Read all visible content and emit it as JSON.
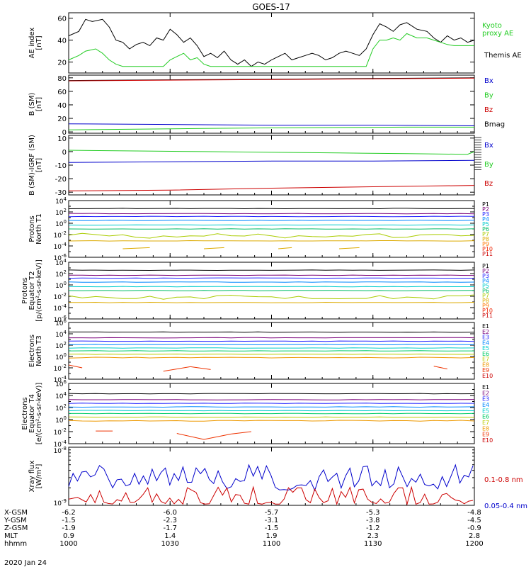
{
  "title": "GOES-17",
  "date_label": "2020 Jan 24",
  "colors": {
    "black": "#000000",
    "green": "#22cc22",
    "red": "#cc0000",
    "blue": "#0000cc"
  },
  "ephemeris": {
    "rows": [
      {
        "label": "X-GSM",
        "values": [
          "-6.2",
          "-6.0",
          "-5.7",
          "-5.3",
          "-4.8"
        ]
      },
      {
        "label": "Y-GSM",
        "values": [
          "-1.5",
          "-2.3",
          "-3.1",
          "-3.8",
          "-4.5"
        ]
      },
      {
        "label": "Z-GSM",
        "values": [
          "-1.9",
          "-1.7",
          "-1.5",
          "-1.2",
          "-0.9"
        ]
      },
      {
        "label": "MLT",
        "values": [
          "0.9",
          "1.4",
          "1.9",
          "2.3",
          "2.8"
        ]
      },
      {
        "label": "hhmm",
        "values": [
          "1000",
          "1030",
          "1100",
          "1130",
          "1200"
        ]
      }
    ]
  },
  "chart_data": [
    {
      "type": "line",
      "ylabel": "AE index\n[nT]",
      "yticks": [
        "20",
        "40",
        "60"
      ],
      "ylim": [
        10,
        65
      ],
      "legend": [
        {
          "label": "Kyoto\nproxy AE",
          "color": "#22cc22"
        },
        {
          "label": "Themis AE",
          "color": "#000000"
        }
      ],
      "series": [
        {
          "name": "Themis AE",
          "color": "#000000",
          "x": [
            0,
            3,
            5,
            7,
            10,
            12,
            14,
            16,
            18,
            20,
            22,
            24,
            26,
            28,
            30,
            32,
            34,
            36,
            38,
            40,
            42,
            44,
            46,
            48,
            50,
            52,
            54,
            56,
            58,
            60,
            62,
            64,
            66,
            68,
            70,
            72,
            74,
            76,
            78,
            80,
            82,
            84,
            86,
            88,
            90,
            92,
            94,
            96,
            98,
            100,
            103,
            106,
            108,
            110,
            112,
            114,
            116,
            118,
            120
          ],
          "y": [
            44,
            48,
            59,
            57,
            59,
            52,
            40,
            38,
            32,
            36,
            38,
            35,
            42,
            40,
            50,
            45,
            38,
            42,
            35,
            25,
            28,
            24,
            30,
            22,
            18,
            22,
            16,
            20,
            18,
            22,
            25,
            28,
            22,
            24,
            26,
            28,
            26,
            22,
            24,
            28,
            30,
            28,
            26,
            32,
            45,
            55,
            52,
            48,
            54,
            56,
            50,
            48,
            42,
            38,
            44,
            40,
            42,
            38,
            40
          ]
        },
        {
          "name": "Kyoto proxy AE",
          "color": "#22cc22",
          "x": [
            0,
            3,
            5,
            8,
            10,
            12,
            14,
            16,
            18,
            20,
            22,
            24,
            26,
            28,
            30,
            32,
            34,
            36,
            38,
            40,
            42,
            44,
            46,
            48,
            50,
            52,
            54,
            56,
            58,
            60,
            62,
            64,
            66,
            68,
            70,
            72,
            74,
            76,
            78,
            80,
            82,
            84,
            86,
            88,
            90,
            92,
            94,
            96,
            98,
            100,
            103,
            106,
            108,
            110,
            112,
            114,
            116,
            118,
            120
          ],
          "y": [
            22,
            26,
            30,
            32,
            28,
            22,
            18,
            16,
            16,
            16,
            16,
            16,
            16,
            16,
            22,
            25,
            28,
            22,
            24,
            18,
            16,
            16,
            16,
            16,
            16,
            16,
            16,
            16,
            16,
            16,
            16,
            16,
            16,
            16,
            16,
            16,
            16,
            16,
            16,
            16,
            16,
            16,
            16,
            16,
            32,
            40,
            40,
            42,
            40,
            46,
            42,
            42,
            40,
            38,
            36,
            35,
            35,
            35,
            35
          ]
        }
      ]
    },
    {
      "type": "line",
      "ylabel": "B (SM)\n[nT]",
      "yticks": [
        "0",
        "20",
        "40",
        "60",
        "80"
      ],
      "ylim": [
        -2,
        84
      ],
      "legend": [
        {
          "label": "Bx",
          "color": "#0000cc"
        },
        {
          "label": "By",
          "color": "#22cc22"
        },
        {
          "label": "Bz",
          "color": "#cc0000"
        },
        {
          "label": "Bmag",
          "color": "#000000"
        }
      ],
      "series": [
        {
          "name": "Bmag",
          "color": "#000000",
          "x": [
            0,
            120
          ],
          "y": [
            76,
            80
          ]
        },
        {
          "name": "Bz",
          "color": "#cc0000",
          "x": [
            0,
            120
          ],
          "y": [
            75.5,
            79.5
          ]
        },
        {
          "name": "Bx",
          "color": "#0000cc",
          "x": [
            0,
            30,
            60,
            90,
            120
          ],
          "y": [
            12,
            11,
            10,
            10,
            9
          ]
        },
        {
          "name": "By",
          "color": "#22cc22",
          "x": [
            0,
            20,
            40,
            60,
            80,
            100,
            120
          ],
          "y": [
            3,
            4,
            5,
            6,
            6.5,
            7,
            7
          ]
        }
      ]
    },
    {
      "type": "line",
      "ylabel": "B (SM)-IGRF (SM)\n[nT]",
      "yticks": [
        "10",
        "0",
        "-10",
        "-20",
        "-30"
      ],
      "ylim": [
        -32,
        12
      ],
      "legend": [
        {
          "label": "Bx",
          "color": "#0000cc"
        },
        {
          "label": "By",
          "color": "#22cc22"
        },
        {
          "label": "Bz",
          "color": "#cc0000"
        }
      ],
      "series": [
        {
          "name": "By",
          "color": "#22cc22",
          "x": [
            0,
            20,
            40,
            60,
            80,
            100,
            118,
            120
          ],
          "y": [
            1,
            0.5,
            0,
            -0.5,
            -1,
            -1.5,
            -2,
            0
          ]
        },
        {
          "name": "Bx",
          "color": "#0000cc",
          "x": [
            0,
            30,
            60,
            90,
            120
          ],
          "y": [
            -8,
            -7.5,
            -7,
            -7,
            -6.5
          ]
        },
        {
          "name": "Bz",
          "color": "#cc0000",
          "x": [
            0,
            30,
            60,
            90,
            120
          ],
          "y": [
            -29,
            -28.5,
            -27,
            -26,
            -25
          ]
        }
      ]
    }
  ],
  "log_panels": [
    {
      "ylabel": "Protons\nNorth T1",
      "tick_labels": [
        "10^4",
        "10^2",
        "10^0",
        "10^-2",
        "10^-4",
        "10^-6"
      ],
      "legend": [
        "P1",
        "P2",
        "P3",
        "P4",
        "P5",
        "P6",
        "P7",
        "P8",
        "P9",
        "P10",
        "P11"
      ]
    },
    {
      "ylabel": "Protons\nEquator T2\n[p/(cm²-s-sr-keV)]",
      "tick_labels": [
        "10^4",
        "10^2",
        "10^0",
        "10^-2",
        "10^-4",
        "10^-6"
      ],
      "legend": [
        "P1",
        "P2",
        "P3",
        "P4",
        "P5",
        "P6",
        "P7",
        "P8",
        "P9",
        "P10",
        "P11"
      ]
    },
    {
      "ylabel": "Electrons\nNorth T3",
      "tick_labels": [
        "10^6",
        "10^4",
        "10^2",
        "10^0",
        "10^-2",
        "10^-4"
      ],
      "legend": [
        "E1",
        "E2",
        "E3",
        "E4",
        "E5",
        "E6",
        "E7",
        "E8",
        "E9",
        "E10"
      ]
    },
    {
      "ylabel": "Electrons\nEquator T4\n[e/(cm²-s-sr-keV)]",
      "tick_labels": [
        "10^6",
        "10^4",
        "10^2",
        "10^0",
        "10^-2",
        "10^-4"
      ],
      "legend": [
        "E1",
        "E2",
        "E3",
        "E4",
        "E5",
        "E6",
        "E7",
        "E8",
        "E9",
        "E10"
      ]
    },
    {
      "ylabel": "Xray flux\n[W/m²]",
      "tick_labels": [
        "10^-8",
        "10^-9"
      ],
      "legend": [
        "0.1-0.8 nm",
        "0.05-0.4 nm"
      ]
    }
  ]
}
